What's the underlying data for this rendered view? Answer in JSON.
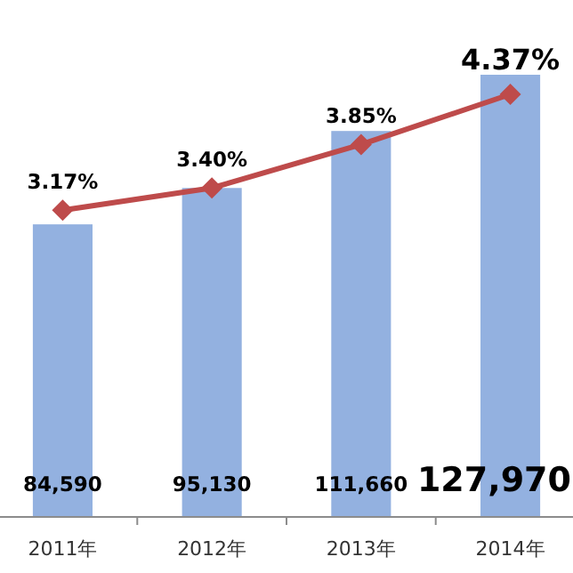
{
  "chart_data": {
    "type": "bar",
    "categories": [
      "2011年",
      "2012年",
      "2013年",
      "2014年"
    ],
    "series": [
      {
        "color": "#93b1e0",
        "values": [
          84590,
          95130,
          111660,
          127970
        ],
        "value_labels": [
          "84,590",
          "95,130",
          "111,660",
          "127,970"
        ]
      },
      {
        "type": "line",
        "axis": "y2",
        "color": "#be4b4b",
        "marker": "diamond",
        "values": [
          3.17,
          3.4,
          3.85,
          4.37
        ],
        "value_labels": [
          "3.17%",
          "3.40%",
          "3.85%",
          "4.37%"
        ]
      }
    ],
    "tick_labels": "x"
  }
}
